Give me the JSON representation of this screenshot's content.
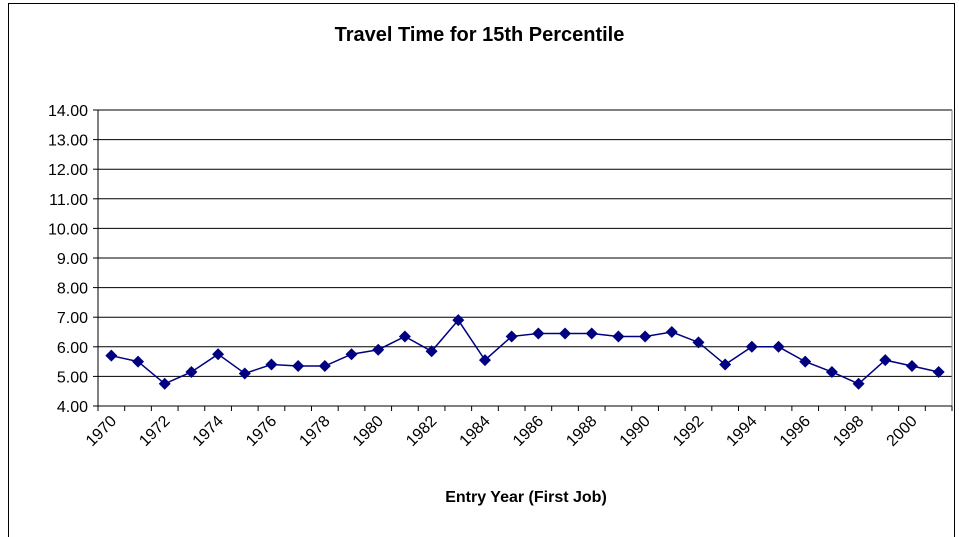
{
  "chart_data": {
    "type": "line",
    "title": "Travel Time for 15th Percentile",
    "xlabel": "Entry Year (First Job)",
    "ylabel": "",
    "ylim": [
      4,
      14
    ],
    "yticks": [
      "4.00",
      "5.00",
      "6.00",
      "7.00",
      "8.00",
      "9.00",
      "10.00",
      "11.00",
      "12.00",
      "13.00",
      "14.00"
    ],
    "xtick_labels": [
      "1970",
      "1972",
      "1974",
      "1976",
      "1978",
      "1980",
      "1982",
      "1984",
      "1986",
      "1988",
      "1990",
      "1992",
      "1994",
      "1996",
      "1998",
      "2000"
    ],
    "x": [
      1970,
      1971,
      1972,
      1973,
      1974,
      1975,
      1976,
      1977,
      1978,
      1979,
      1980,
      1981,
      1982,
      1983,
      1984,
      1985,
      1986,
      1987,
      1988,
      1989,
      1990,
      1991,
      1992,
      1993,
      1994,
      1995,
      1996,
      1997,
      1998,
      1999,
      2000,
      2001
    ],
    "series": [
      {
        "values": [
          5.7,
          5.5,
          4.75,
          5.15,
          5.75,
          5.1,
          5.4,
          5.35,
          5.35,
          5.75,
          5.9,
          6.35,
          5.85,
          6.9,
          5.55,
          6.35,
          6.45,
          6.45,
          6.45,
          6.35,
          6.35,
          6.5,
          6.15,
          5.4,
          6.0,
          6.0,
          5.5,
          5.15,
          4.75,
          5.55,
          5.35,
          5.15
        ],
        "color": "#000080"
      }
    ],
    "grid": true,
    "legend": "none"
  }
}
